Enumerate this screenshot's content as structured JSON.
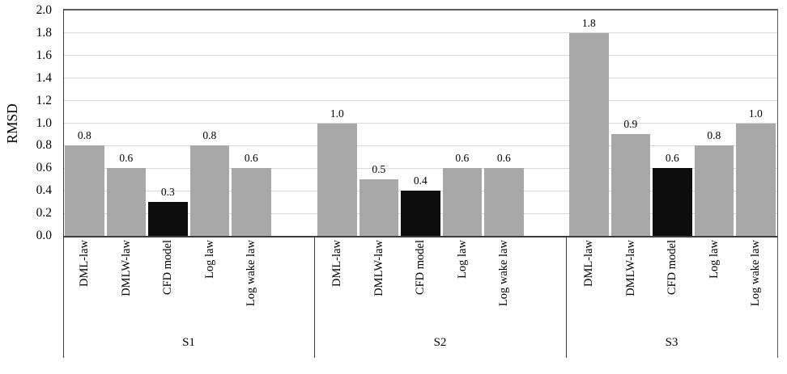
{
  "chart_data": {
    "type": "bar",
    "title": "",
    "xlabel": "",
    "ylabel": "RMSD",
    "ylim": [
      0,
      2.0
    ],
    "ytick_step": 0.2,
    "ytick_labels": [
      "0.0",
      "0.2",
      "0.4",
      "0.6",
      "0.8",
      "1.0",
      "1.2",
      "1.4",
      "1.6",
      "1.8",
      "2.0"
    ],
    "grid": "horizontal-light",
    "legend": "none",
    "categories": [
      "DML-law",
      "DMLW-law",
      "CFD model",
      "Log law",
      "Log wake law"
    ],
    "highlight_category": "CFD model",
    "series": [
      {
        "name": "S1",
        "values": [
          0.8,
          0.6,
          0.3,
          0.8,
          0.6
        ]
      },
      {
        "name": "S2",
        "values": [
          1.0,
          0.5,
          0.4,
          0.6,
          0.6
        ]
      },
      {
        "name": "S3",
        "values": [
          1.8,
          0.9,
          0.6,
          0.8,
          1.0
        ]
      }
    ],
    "bar_value_labels": [
      [
        "0.8",
        "0.6",
        "0.3",
        "0.8",
        "0.6"
      ],
      [
        "1.0",
        "0.5",
        "0.4",
        "0.6",
        "0.6"
      ],
      [
        "1.8",
        "0.9",
        "0.6",
        "0.8",
        "1.0"
      ]
    ],
    "colors": {
      "bar": "#a8a8a8",
      "highlight_bar": "#0d0d0d",
      "gridline": "#d9d9d9",
      "plot_border": "#595959",
      "axis_line": "#3c3c3c",
      "text": "#000000"
    }
  }
}
